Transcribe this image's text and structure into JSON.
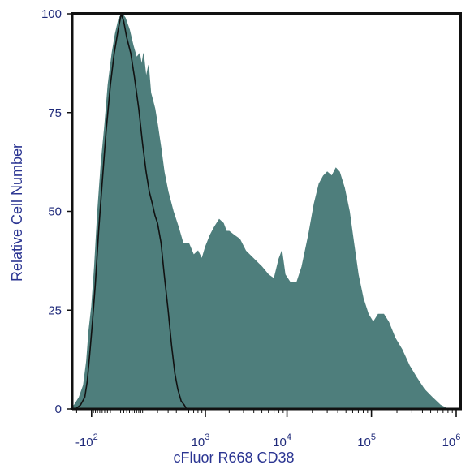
{
  "chart_data": {
    "type": "area",
    "xlabel": "cFluor R668 CD38",
    "ylabel": "Relative Cell Number",
    "xscale": "biexponential",
    "ylim": [
      0,
      100
    ],
    "grid": false,
    "legend": "none",
    "y_ticks": [
      {
        "value": 0,
        "label": "0"
      },
      {
        "value": 25,
        "label": "25"
      },
      {
        "value": 50,
        "label": "50"
      },
      {
        "value": 75,
        "label": "75"
      },
      {
        "value": 100,
        "label": "100"
      }
    ],
    "x_ticks": [
      {
        "value": -100,
        "base": "-10",
        "exp": "2"
      },
      {
        "value": 1000,
        "base": "10",
        "exp": "3"
      },
      {
        "value": 10000,
        "base": "10",
        "exp": "4"
      },
      {
        "value": 100000,
        "base": "10",
        "exp": "5"
      },
      {
        "value": 1000000,
        "base": "10",
        "exp": "6"
      }
    ],
    "series": [
      {
        "type": "area",
        "color": "#4e7e7c",
        "points": [
          [
            -260,
            0
          ],
          [
            -220,
            1
          ],
          [
            -180,
            3
          ],
          [
            -150,
            6
          ],
          [
            -130,
            12
          ],
          [
            -115,
            20
          ],
          [
            -100,
            26
          ],
          [
            -85,
            36
          ],
          [
            -70,
            50
          ],
          [
            -55,
            62
          ],
          [
            -40,
            72
          ],
          [
            -28,
            82
          ],
          [
            -15,
            90
          ],
          [
            -5,
            95
          ],
          [
            5,
            99
          ],
          [
            15,
            100
          ],
          [
            25,
            99
          ],
          [
            40,
            96
          ],
          [
            55,
            92
          ],
          [
            70,
            89
          ],
          [
            85,
            90
          ],
          [
            95,
            87
          ],
          [
            105,
            90
          ],
          [
            120,
            84
          ],
          [
            135,
            87
          ],
          [
            150,
            80
          ],
          [
            165,
            78
          ],
          [
            180,
            76
          ],
          [
            200,
            72
          ],
          [
            230,
            66
          ],
          [
            260,
            60
          ],
          [
            300,
            55
          ],
          [
            360,
            50
          ],
          [
            430,
            46
          ],
          [
            500,
            42
          ],
          [
            600,
            42
          ],
          [
            700,
            39
          ],
          [
            800,
            40
          ],
          [
            900,
            38
          ],
          [
            1000,
            41
          ],
          [
            1150,
            44
          ],
          [
            1300,
            46
          ],
          [
            1500,
            48
          ],
          [
            1700,
            47
          ],
          [
            1850,
            45
          ],
          [
            2000,
            45
          ],
          [
            2300,
            44
          ],
          [
            2700,
            43
          ],
          [
            3200,
            40
          ],
          [
            4000,
            38
          ],
          [
            5000,
            36
          ],
          [
            6000,
            34
          ],
          [
            7000,
            33
          ],
          [
            8000,
            38
          ],
          [
            8700,
            40
          ],
          [
            9500,
            34
          ],
          [
            11000,
            32
          ],
          [
            13000,
            32
          ],
          [
            15000,
            36
          ],
          [
            18000,
            44
          ],
          [
            21000,
            52
          ],
          [
            24000,
            57
          ],
          [
            27000,
            59
          ],
          [
            30000,
            60
          ],
          [
            34000,
            59
          ],
          [
            38000,
            61
          ],
          [
            42000,
            60
          ],
          [
            48000,
            56
          ],
          [
            55000,
            50
          ],
          [
            62000,
            42
          ],
          [
            70000,
            34
          ],
          [
            80000,
            28
          ],
          [
            92000,
            24
          ],
          [
            105000,
            22
          ],
          [
            120000,
            24
          ],
          [
            140000,
            24
          ],
          [
            160000,
            22
          ],
          [
            190000,
            18
          ],
          [
            230000,
            15
          ],
          [
            280000,
            11
          ],
          [
            340000,
            8
          ],
          [
            420000,
            5
          ],
          [
            520000,
            3
          ],
          [
            650000,
            1
          ],
          [
            800000,
            0
          ]
        ]
      },
      {
        "type": "line",
        "color": "#111111",
        "points": [
          [
            -210,
            0
          ],
          [
            -170,
            1
          ],
          [
            -140,
            3
          ],
          [
            -125,
            7
          ],
          [
            -110,
            14
          ],
          [
            -95,
            22
          ],
          [
            -80,
            32
          ],
          [
            -65,
            45
          ],
          [
            -50,
            57
          ],
          [
            -35,
            70
          ],
          [
            -20,
            82
          ],
          [
            -8,
            90
          ],
          [
            3,
            96
          ],
          [
            12,
            100
          ],
          [
            20,
            98
          ],
          [
            30,
            94
          ],
          [
            45,
            90
          ],
          [
            60,
            84
          ],
          [
            80,
            76
          ],
          [
            100,
            67
          ],
          [
            120,
            60
          ],
          [
            140,
            55
          ],
          [
            160,
            52
          ],
          [
            180,
            49
          ],
          [
            200,
            47
          ],
          [
            230,
            42
          ],
          [
            260,
            34
          ],
          [
            300,
            25
          ],
          [
            340,
            16
          ],
          [
            380,
            9
          ],
          [
            420,
            5
          ],
          [
            470,
            2
          ],
          [
            520,
            1
          ],
          [
            560,
            0
          ]
        ]
      }
    ]
  }
}
